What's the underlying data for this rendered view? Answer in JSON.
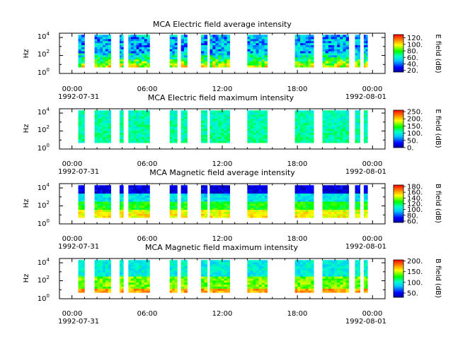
{
  "chart_data": [
    {
      "type": "heatmap",
      "title": "MCA  Electric field average intensity",
      "ylabel": "Hz",
      "colorbar_label": "E field (dB)",
      "colorbar_range": [
        15,
        130
      ],
      "colorbar_ticks": [
        "20.",
        "40.",
        "60.",
        "80.",
        "100.",
        "120."
      ],
      "colorbar_values": [
        20,
        40,
        60,
        80,
        100,
        120
      ],
      "ylim": [
        1,
        30000
      ],
      "yscale": "log",
      "y_tick_labels": [
        "10",
        "10",
        "10"
      ],
      "y_tick_exponents": [
        "0",
        "2",
        "4"
      ],
      "x_tick_labels": [
        "00:00",
        "06:00",
        "12:00",
        "18:00",
        "00:00"
      ],
      "x_date_labels": [
        "1992-07-31",
        "1992-08-01"
      ],
      "xlim_hours": [
        -1,
        25
      ],
      "data_frequency_range_hz": [
        5,
        20000
      ],
      "data_intervals_hours": [
        [
          0.5,
          1.0
        ],
        [
          1.8,
          3.1
        ],
        [
          3.8,
          4.1
        ],
        [
          4.5,
          6.2
        ],
        [
          7.8,
          8.4
        ],
        [
          8.7,
          9.2
        ],
        [
          10.3,
          10.8
        ],
        [
          11.0,
          12.6
        ],
        [
          14.0,
          15.6
        ],
        [
          17.8,
          19.3
        ],
        [
          20.0,
          22.1
        ],
        [
          22.6,
          23.0
        ],
        [
          23.3,
          23.6
        ]
      ],
      "intensity_profile": "high at low frequencies (~100-120 dB), decreasing to ~60-70 dB above 1 kHz"
    },
    {
      "type": "heatmap",
      "title": "MCA  Electric field maximum intensity",
      "ylabel": "Hz",
      "colorbar_label": "E field (dB)",
      "colorbar_range": [
        0,
        260
      ],
      "colorbar_ticks": [
        "0.",
        "50.",
        "100.",
        "150.",
        "200.",
        "250."
      ],
      "colorbar_values": [
        0,
        50,
        100,
        150,
        200,
        250
      ],
      "ylim": [
        1,
        30000
      ],
      "yscale": "log",
      "y_tick_labels": [
        "10",
        "10",
        "10"
      ],
      "y_tick_exponents": [
        "0",
        "2",
        "4"
      ],
      "x_tick_labels": [
        "00:00",
        "06:00",
        "12:00",
        "18:00",
        "00:00"
      ],
      "x_date_labels": [
        "1992-07-31",
        "1992-08-01"
      ],
      "xlim_hours": [
        -1,
        25
      ],
      "data_frequency_range_hz": [
        5,
        20000
      ],
      "data_intervals_hours": [
        [
          0.5,
          1.0
        ],
        [
          1.8,
          3.1
        ],
        [
          3.8,
          4.1
        ],
        [
          4.5,
          6.2
        ],
        [
          7.8,
          8.4
        ],
        [
          8.7,
          9.2
        ],
        [
          10.3,
          10.8
        ],
        [
          11.0,
          12.6
        ],
        [
          14.0,
          15.6
        ],
        [
          17.8,
          19.3
        ],
        [
          20.0,
          22.1
        ],
        [
          22.6,
          23.0
        ],
        [
          23.3,
          23.6
        ]
      ],
      "intensity_profile": "mostly ~100-130 dB across all frequencies"
    },
    {
      "type": "heatmap",
      "title": "MCA  Magnetic field average intensity",
      "ylabel": "Hz",
      "colorbar_label": "B field (dB)",
      "colorbar_range": [
        55,
        185
      ],
      "colorbar_ticks": [
        "60.",
        "80.",
        "100.",
        "120.",
        "140.",
        "160.",
        "180."
      ],
      "colorbar_values": [
        60,
        80,
        100,
        120,
        140,
        160,
        180
      ],
      "ylim": [
        1,
        30000
      ],
      "yscale": "log",
      "y_tick_labels": [
        "10",
        "10",
        "10"
      ],
      "y_tick_exponents": [
        "0",
        "2",
        "4"
      ],
      "x_tick_labels": [
        "00:00",
        "06:00",
        "12:00",
        "18:00",
        "00:00"
      ],
      "x_date_labels": [
        "1992-07-31",
        "1992-08-01"
      ],
      "xlim_hours": [
        -1,
        25
      ],
      "data_frequency_range_hz": [
        5,
        20000
      ],
      "data_intervals_hours": [
        [
          0.5,
          1.0
        ],
        [
          1.8,
          3.1
        ],
        [
          3.8,
          4.1
        ],
        [
          4.5,
          6.2
        ],
        [
          7.8,
          8.4
        ],
        [
          8.7,
          9.2
        ],
        [
          10.3,
          10.8
        ],
        [
          11.0,
          12.6
        ],
        [
          14.0,
          15.6
        ],
        [
          17.8,
          19.3
        ],
        [
          20.0,
          22.1
        ],
        [
          22.6,
          23.0
        ],
        [
          23.3,
          23.6
        ]
      ],
      "intensity_profile": "~140-160 dB near 10-100 Hz, ~110 dB mid, ~60-80 dB above 1 kHz"
    },
    {
      "type": "heatmap",
      "title": "MCA  Magnetic field maximum intensity",
      "ylabel": "Hz",
      "colorbar_label": "B field (dB)",
      "colorbar_range": [
        30,
        205
      ],
      "colorbar_ticks": [
        "50.",
        "100.",
        "150.",
        "200."
      ],
      "colorbar_values": [
        50,
        100,
        150,
        200
      ],
      "ylim": [
        1,
        30000
      ],
      "yscale": "log",
      "y_tick_labels": [
        "10",
        "10",
        "10"
      ],
      "y_tick_exponents": [
        "0",
        "2",
        "4"
      ],
      "x_tick_labels": [
        "00:00",
        "06:00",
        "12:00",
        "18:00",
        "00:00"
      ],
      "x_date_labels": [
        "1992-07-31",
        "1992-08-01"
      ],
      "xlim_hours": [
        -1,
        25
      ],
      "data_frequency_range_hz": [
        5,
        20000
      ],
      "data_intervals_hours": [
        [
          0.5,
          1.0
        ],
        [
          1.8,
          3.1
        ],
        [
          3.8,
          4.1
        ],
        [
          4.5,
          6.2
        ],
        [
          7.8,
          8.4
        ],
        [
          8.7,
          9.2
        ],
        [
          10.3,
          10.8
        ],
        [
          11.0,
          12.6
        ],
        [
          14.0,
          15.6
        ],
        [
          17.8,
          19.3
        ],
        [
          20.0,
          22.1
        ],
        [
          22.6,
          23.0
        ],
        [
          23.3,
          23.6
        ]
      ],
      "intensity_profile": "~150-170 dB at low frequencies, ~100-120 dB mid, ~90-100 dB above 1 kHz"
    }
  ]
}
